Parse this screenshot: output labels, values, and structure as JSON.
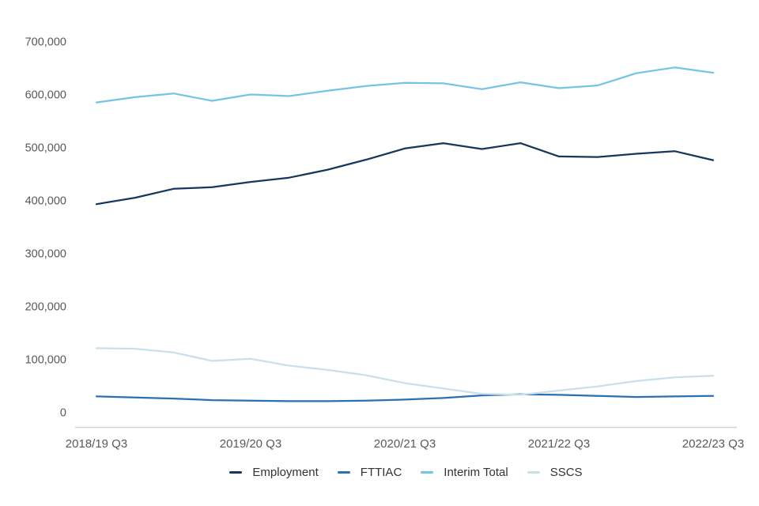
{
  "chart_data": {
    "type": "line",
    "title": "",
    "xlabel": "",
    "ylabel": "",
    "ylim": [
      0,
      700000
    ],
    "y_tick_step": 100000,
    "y_tick_labels": [
      "0",
      "100,000",
      "200,000",
      "300,000",
      "400,000",
      "500,000",
      "600,000",
      "700,000"
    ],
    "grid": false,
    "legend_position": "bottom-center",
    "n_points": 17,
    "points_per_x_interval": 4,
    "x_ticks": [
      {
        "index": 0,
        "label": "2018/19 Q3"
      },
      {
        "index": 4,
        "label": "2019/20 Q3"
      },
      {
        "index": 8,
        "label": "2020/21 Q3"
      },
      {
        "index": 12,
        "label": "2021/22 Q3"
      },
      {
        "index": 16,
        "label": "2022/23 Q3"
      }
    ],
    "series": [
      {
        "name": "Employment",
        "color": "#17375e",
        "values": [
          393000,
          405000,
          422000,
          425000,
          435000,
          443000,
          458000,
          477000,
          498000,
          508000,
          497000,
          508000,
          483000,
          482000,
          488000,
          493000,
          476000
        ]
      },
      {
        "name": "FTTIAC",
        "color": "#2e6fae",
        "values": [
          30000,
          28000,
          26000,
          23000,
          22000,
          21000,
          21000,
          22000,
          24000,
          27000,
          32000,
          34000,
          33000,
          31000,
          29000,
          30000,
          31000
        ]
      },
      {
        "name": "Interim Total",
        "color": "#74c4e4",
        "values": [
          585000,
          595000,
          602000,
          588000,
          600000,
          597000,
          607000,
          616000,
          622000,
          621000,
          610000,
          623000,
          612000,
          617000,
          640000,
          651000,
          641000
        ]
      },
      {
        "name": "SSCS",
        "color": "#c8e0eb",
        "values": [
          121000,
          120000,
          113000,
          97000,
          101000,
          88000,
          80000,
          70000,
          55000,
          45000,
          35000,
          33000,
          41000,
          49000,
          59000,
          66000,
          69000
        ]
      }
    ]
  },
  "colors": {
    "background": "#ffffff",
    "axis_line": "#d2d2d2",
    "tick_text": "#595959",
    "legend_text": "#333333"
  }
}
